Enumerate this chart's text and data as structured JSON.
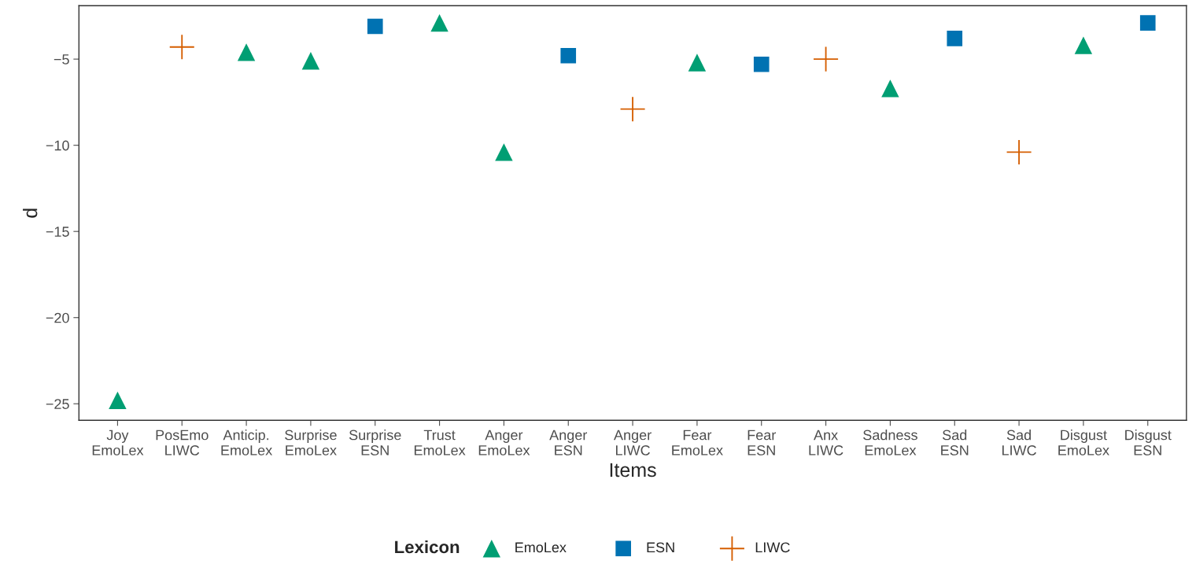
{
  "chart_data": {
    "type": "scatter",
    "xlabel": "Items",
    "ylabel": "d",
    "legend_title": "Lexicon",
    "categories": [
      "Joy\nEmoLex",
      "PosEmo\nLIWC",
      "Anticip.\nEmoLex",
      "Surprise\nEmoLex",
      "Surprise\nESN",
      "Trust\nEmoLex",
      "Anger\nEmoLex",
      "Anger\nESN",
      "Anger\nLIWC",
      "Fear\nEmoLex",
      "Fear\nESN",
      "Anx\nLIWC",
      "Sadness\nEmoLex",
      "Sad\nESN",
      "Sad\nLIWC",
      "Disgust\nEmoLex",
      "Disgust\nESN"
    ],
    "series": [
      {
        "name": "EmoLex",
        "color": "#009e73",
        "marker": "triangle",
        "values": [
          -24.8,
          null,
          -4.6,
          -5.1,
          null,
          -2.9,
          -10.4,
          null,
          null,
          -5.2,
          null,
          null,
          -6.7,
          null,
          null,
          -4.2,
          null
        ]
      },
      {
        "name": "ESN",
        "color": "#0072b2",
        "marker": "square",
        "values": [
          null,
          null,
          null,
          null,
          -3.1,
          null,
          null,
          -4.8,
          null,
          null,
          -5.3,
          null,
          null,
          -3.8,
          null,
          null,
          -2.9
        ]
      },
      {
        "name": "LIWC",
        "color": "#d55e00",
        "marker": "cross",
        "values": [
          null,
          -4.3,
          null,
          null,
          null,
          null,
          null,
          null,
          -7.9,
          null,
          null,
          -5.0,
          null,
          null,
          -10.4,
          null,
          null
        ]
      }
    ],
    "ylim": [
      -25.96,
      -1.9
    ],
    "yticks": [
      {
        "value": -25,
        "label": "−25"
      },
      {
        "value": -20,
        "label": "−20"
      },
      {
        "value": -15,
        "label": "−15"
      },
      {
        "value": -10,
        "label": "−10"
      },
      {
        "value": -5,
        "label": "−5"
      }
    ],
    "grid": false,
    "legend": "bottom"
  }
}
